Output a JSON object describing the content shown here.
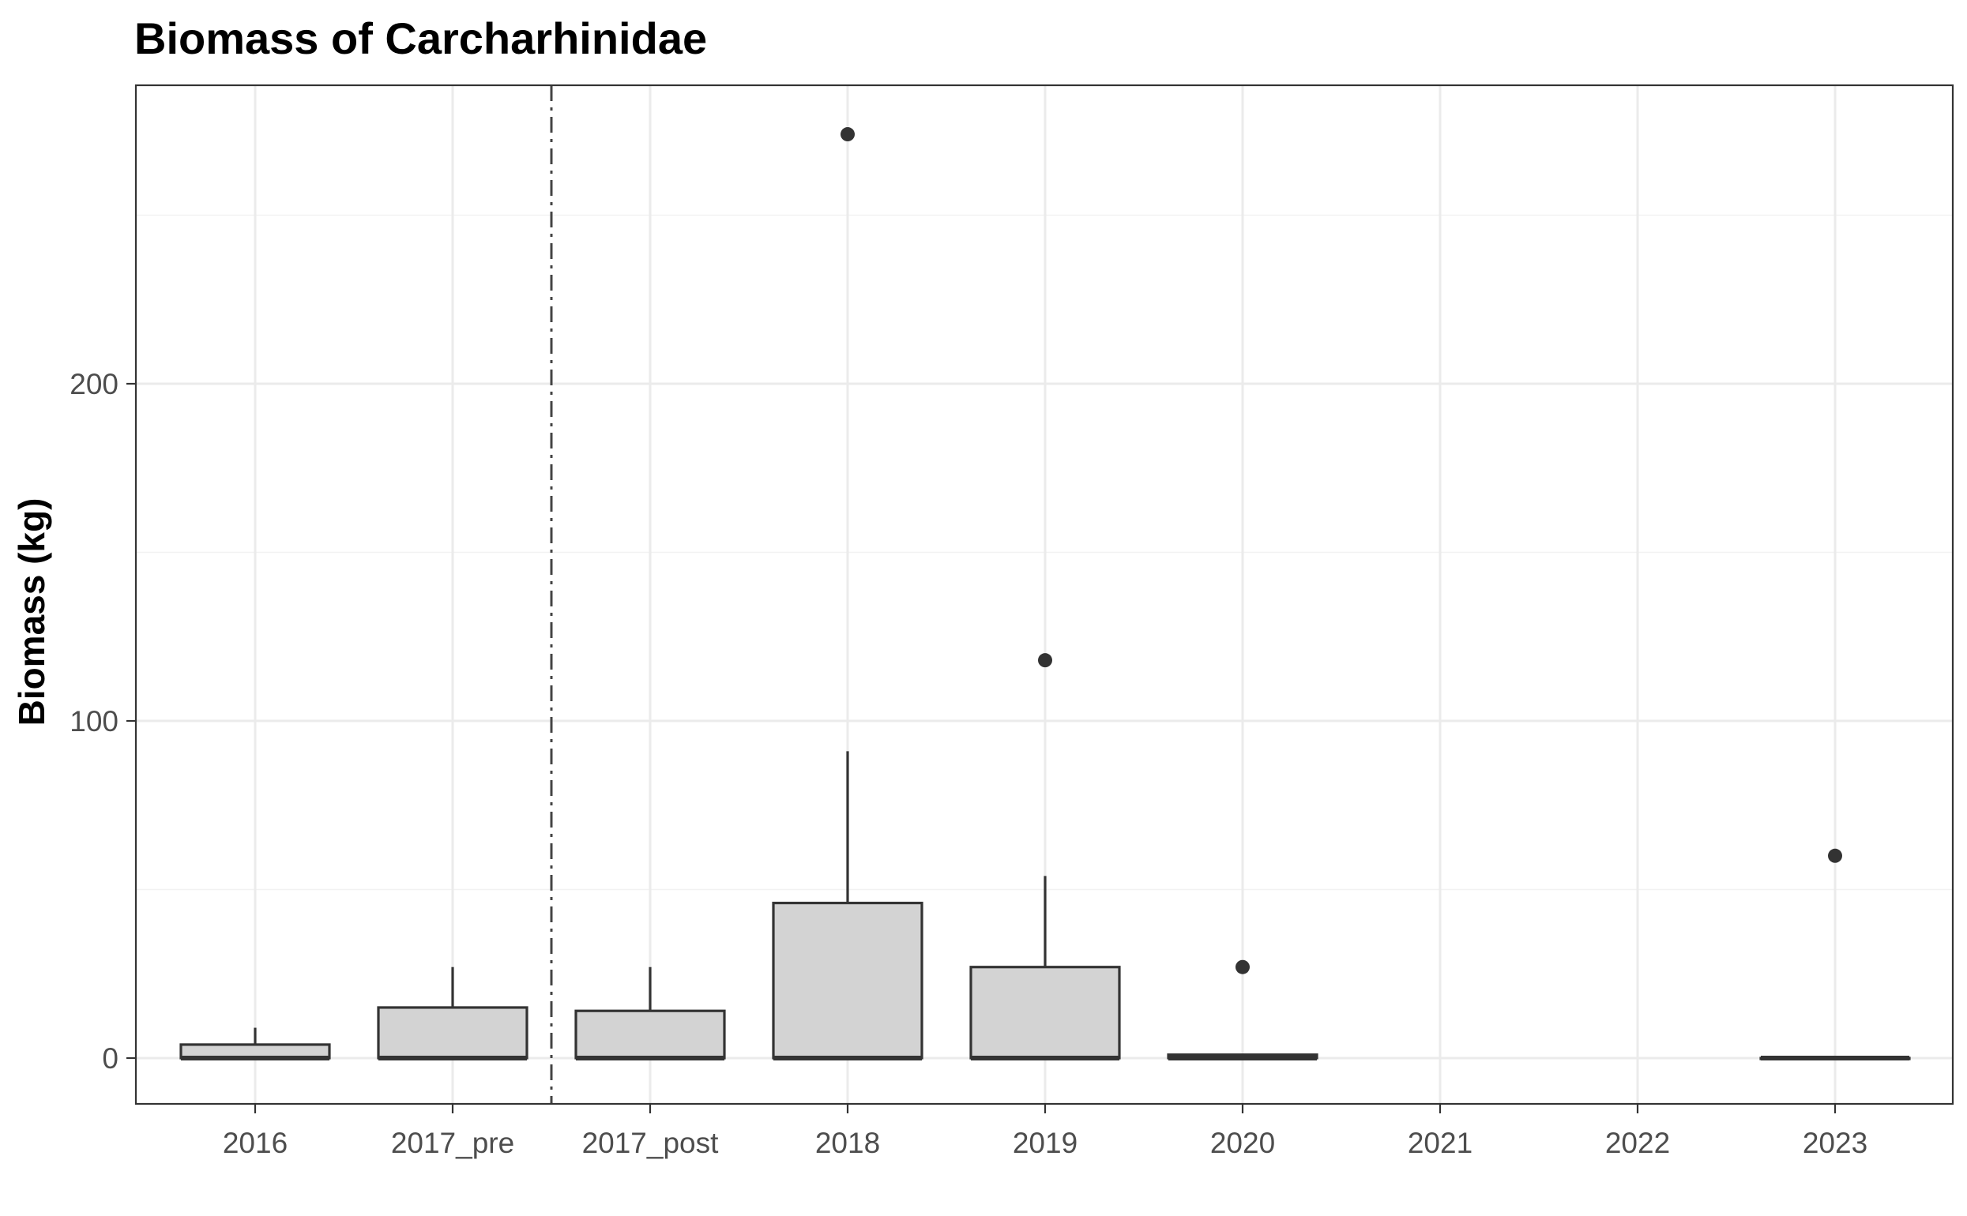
{
  "chart_data": {
    "type": "box",
    "title": "Biomass of Carcharhinidae",
    "xlabel": "",
    "ylabel": "Biomass (kg)",
    "categories": [
      "2016",
      "2017_pre",
      "2017_post",
      "2018",
      "2019",
      "2020",
      "2021",
      "2022",
      "2023"
    ],
    "ylim": [
      -13,
      288
    ],
    "yticks": [
      0,
      100,
      200
    ],
    "ytick_labels": [
      "0",
      "100",
      "200"
    ],
    "grid": true,
    "fill_color": "#d3d3d3",
    "line_color": "#333333",
    "boxes": [
      {
        "category": "2016",
        "min": 0,
        "q1": 0,
        "median": 0,
        "q3": 4,
        "max": 9,
        "outliers": []
      },
      {
        "category": "2017_pre",
        "min": 0,
        "q1": 0,
        "median": 0,
        "q3": 15,
        "max": 27,
        "outliers": []
      },
      {
        "category": "2017_post",
        "min": 0,
        "q1": 0,
        "median": 0,
        "q3": 14,
        "max": 27,
        "outliers": []
      },
      {
        "category": "2018",
        "min": 0,
        "q1": 0,
        "median": 0,
        "q3": 46,
        "max": 91,
        "outliers": [
          274
        ]
      },
      {
        "category": "2019",
        "min": 0,
        "q1": 0,
        "median": 0,
        "q3": 27,
        "max": 54,
        "outliers": [
          118
        ]
      },
      {
        "category": "2020",
        "min": 0,
        "q1": 0,
        "median": 0,
        "q3": 1,
        "max": 1,
        "outliers": [
          27
        ]
      },
      {
        "category": "2023",
        "min": 0,
        "q1": 0,
        "median": 0,
        "q3": 0,
        "max": 0,
        "outliers": [
          60
        ]
      }
    ],
    "reference_line": {
      "between": [
        "2017_pre",
        "2017_post"
      ],
      "style": "dashdot"
    }
  }
}
